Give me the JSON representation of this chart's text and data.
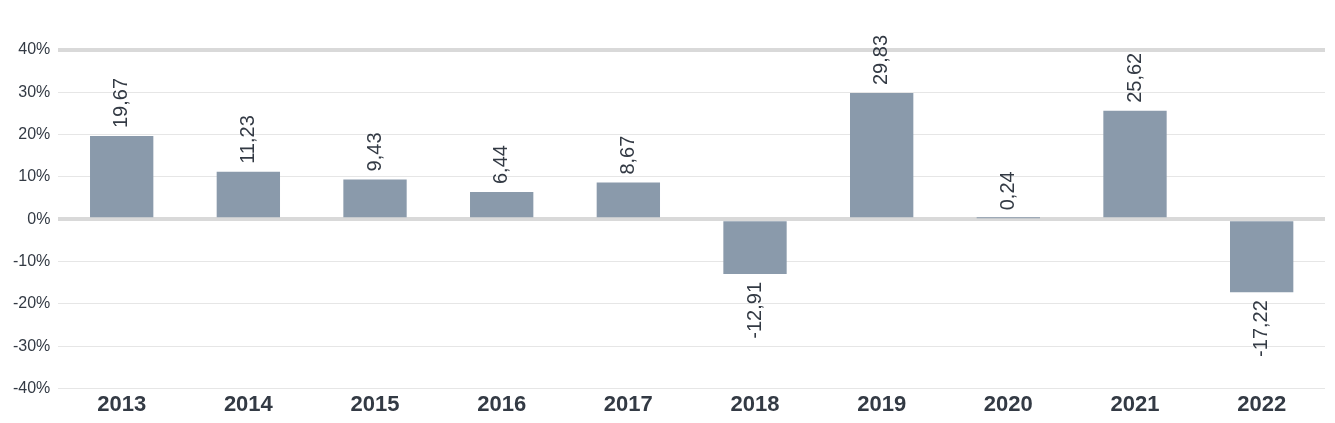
{
  "chart_data": {
    "type": "bar",
    "categories": [
      "2013",
      "2014",
      "2015",
      "2016",
      "2017",
      "2018",
      "2019",
      "2020",
      "2021",
      "2022"
    ],
    "series": [
      {
        "color": "#8a9aab",
        "values": [
          19.67,
          11.23,
          9.43,
          6.44,
          8.67,
          -12.91,
          29.83,
          0.24,
          25.62,
          -17.22
        ],
        "value_labels": [
          "19,67",
          "11,23",
          "9,43",
          "6,44",
          "8,67",
          "-12,91",
          "29,83",
          "0,24",
          "25,62",
          "-17,22"
        ]
      }
    ],
    "ylim": [
      -40,
      40
    ],
    "yticks": [
      {
        "value": -40,
        "label": "-40%"
      },
      {
        "value": -30,
        "label": "-30%"
      },
      {
        "value": -20,
        "label": "-20%"
      },
      {
        "value": -10,
        "label": "-10%"
      },
      {
        "value": 0,
        "label": "0%"
      },
      {
        "value": 10,
        "label": "10%"
      },
      {
        "value": 20,
        "label": "20%"
      },
      {
        "value": 30,
        "label": "30%"
      },
      {
        "value": 40,
        "label": "40%"
      }
    ],
    "grid": "y",
    "legend": false
  }
}
